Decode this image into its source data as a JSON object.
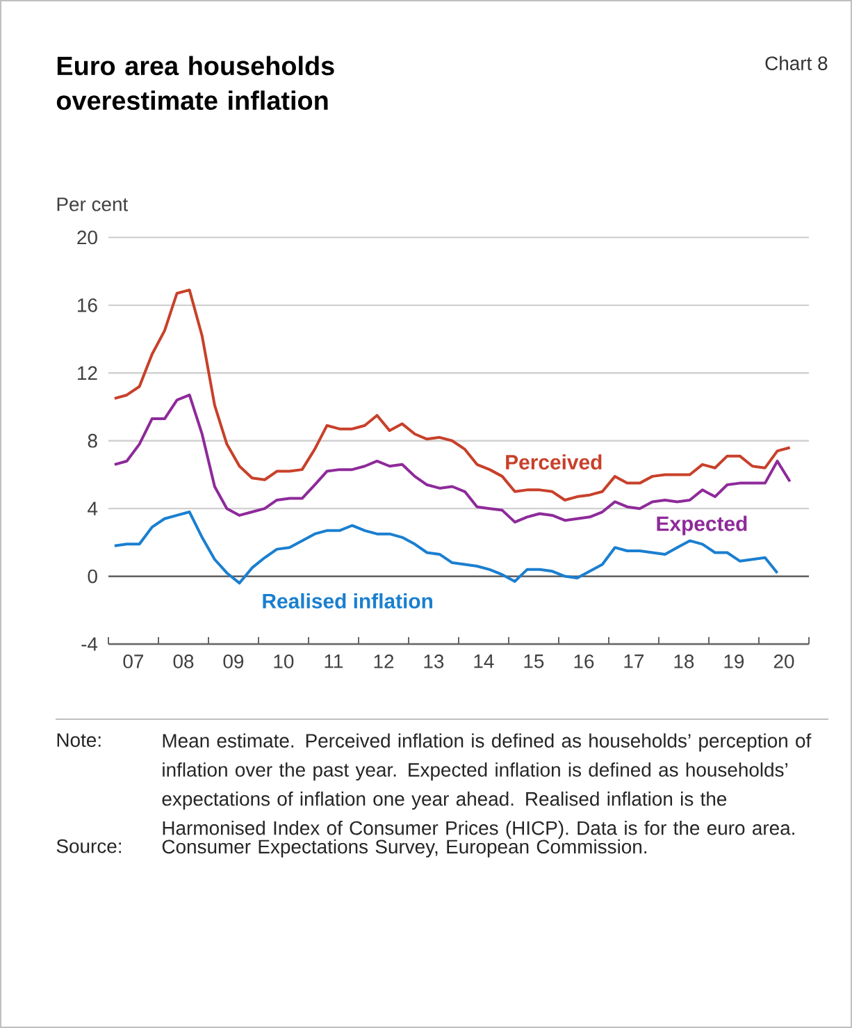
{
  "chart_data": {
    "type": "line",
    "title": "Euro area households overestimate inflation",
    "subtitle": "Chart 8",
    "ylabel": "Per cent",
    "x": [
      "2007-02-15",
      "2007-05-15",
      "2007-08-15",
      "2007-11-15",
      "2008-02-15",
      "2008-05-15",
      "2008-08-15",
      "2008-11-15",
      "2009-02-15",
      "2009-05-15",
      "2009-08-15",
      "2009-11-15",
      "2010-02-15",
      "2010-05-15",
      "2010-08-15",
      "2010-11-15",
      "2011-02-15",
      "2011-05-15",
      "2011-08-15",
      "2011-11-15",
      "2012-02-15",
      "2012-05-15",
      "2012-08-15",
      "2012-11-15",
      "2013-02-15",
      "2013-05-15",
      "2013-08-15",
      "2013-11-15",
      "2014-02-15",
      "2014-05-15",
      "2014-08-15",
      "2014-11-15",
      "2015-02-15",
      "2015-05-15",
      "2015-08-15",
      "2015-11-15",
      "2016-02-15",
      "2016-05-15",
      "2016-08-15",
      "2016-11-15",
      "2017-02-15",
      "2017-05-15",
      "2017-08-15",
      "2017-11-15",
      "2018-02-15",
      "2018-05-15",
      "2018-08-15",
      "2018-11-15",
      "2019-02-15",
      "2019-05-15",
      "2019-08-15",
      "2019-11-15",
      "2020-02-15",
      "2020-05-15",
      "2020-08-15"
    ],
    "series": [
      {
        "name": "Perceived",
        "color": "#c8402a",
        "values": [
          10.5,
          10.7,
          11.2,
          13.1,
          14.5,
          16.7,
          16.9,
          14.2,
          10.1,
          7.8,
          6.5,
          5.8,
          5.7,
          6.2,
          6.2,
          6.3,
          7.5,
          8.9,
          8.7,
          8.7,
          8.9,
          9.5,
          8.6,
          9.0,
          8.4,
          8.1,
          8.2,
          8.0,
          7.5,
          6.6,
          6.3,
          5.9,
          5.0,
          5.1,
          5.1,
          5.0,
          4.5,
          4.7,
          4.8,
          5.0,
          5.9,
          5.5,
          5.5,
          5.9,
          6.0,
          6.0,
          6.0,
          6.6,
          6.4,
          7.1,
          7.1,
          6.5,
          6.4,
          7.4,
          7.6
        ]
      },
      {
        "name": "Expected",
        "color": "#8e2a9a",
        "values": [
          6.6,
          6.8,
          7.8,
          9.3,
          9.3,
          10.4,
          10.7,
          8.4,
          5.3,
          4.0,
          3.6,
          3.8,
          4.0,
          4.5,
          4.6,
          4.6,
          5.4,
          6.2,
          6.3,
          6.3,
          6.5,
          6.8,
          6.5,
          6.6,
          5.9,
          5.4,
          5.2,
          5.3,
          5.0,
          4.1,
          4.0,
          3.9,
          3.2,
          3.5,
          3.7,
          3.6,
          3.3,
          3.4,
          3.5,
          3.8,
          4.4,
          4.1,
          4.0,
          4.4,
          4.5,
          4.4,
          4.5,
          5.1,
          4.7,
          5.4,
          5.5,
          5.5,
          5.5,
          6.8,
          5.6
        ]
      },
      {
        "name": "Realised inflation",
        "color": "#1a7fd0",
        "values": [
          1.8,
          1.9,
          1.9,
          2.9,
          3.4,
          3.6,
          3.8,
          2.3,
          1.0,
          0.2,
          -0.4,
          0.5,
          1.1,
          1.6,
          1.7,
          2.1,
          2.5,
          2.7,
          2.7,
          3.0,
          2.7,
          2.5,
          2.5,
          2.3,
          1.9,
          1.4,
          1.3,
          0.8,
          0.7,
          0.6,
          0.4,
          0.1,
          -0.3,
          0.4,
          0.4,
          0.3,
          0.0,
          -0.1,
          0.3,
          0.7,
          1.7,
          1.5,
          1.5,
          1.4,
          1.3,
          1.7,
          2.1,
          1.9,
          1.4,
          1.4,
          0.9,
          1.0,
          1.1,
          0.2,
          null
        ]
      }
    ],
    "xlim": [
      "2007-01-01",
      "2021-01-01"
    ],
    "xticks": [
      {
        "value": "2007-01-01",
        "label": null
      },
      {
        "value": "2007-07-02",
        "label": "07"
      },
      {
        "value": "2008-01-01",
        "label": null
      },
      {
        "value": "2008-07-02",
        "label": "08"
      },
      {
        "value": "2009-01-01",
        "label": null
      },
      {
        "value": "2009-07-02",
        "label": "09"
      },
      {
        "value": "2010-01-01",
        "label": null
      },
      {
        "value": "2010-07-02",
        "label": "10"
      },
      {
        "value": "2011-01-01",
        "label": null
      },
      {
        "value": "2011-07-02",
        "label": "11"
      },
      {
        "value": "2012-01-01",
        "label": null
      },
      {
        "value": "2012-07-02",
        "label": "12"
      },
      {
        "value": "2013-01-01",
        "label": null
      },
      {
        "value": "2013-07-02",
        "label": "13"
      },
      {
        "value": "2014-01-01",
        "label": null
      },
      {
        "value": "2014-07-02",
        "label": "14"
      },
      {
        "value": "2015-01-01",
        "label": null
      },
      {
        "value": "2015-07-02",
        "label": "15"
      },
      {
        "value": "2016-01-01",
        "label": null
      },
      {
        "value": "2016-07-02",
        "label": "16"
      },
      {
        "value": "2017-01-01",
        "label": null
      },
      {
        "value": "2017-07-02",
        "label": "17"
      },
      {
        "value": "2018-01-01",
        "label": null
      },
      {
        "value": "2018-07-02",
        "label": "18"
      },
      {
        "value": "2019-01-01",
        "label": null
      },
      {
        "value": "2019-07-02",
        "label": "19"
      },
      {
        "value": "2020-01-01",
        "label": null
      },
      {
        "value": "2020-07-02",
        "label": "20"
      },
      {
        "value": "2021-01-01",
        "label": null
      }
    ],
    "ylim": [
      -4,
      20
    ],
    "yticks": [
      -4,
      0,
      4,
      8,
      12,
      16,
      20
    ],
    "grid": "y",
    "ref_lines": [
      {
        "axis": "y",
        "value": 0,
        "color": "#555555"
      }
    ],
    "annotations": [
      "Note:",
      "Mean estimate. Perceived inflation is defined as households’ perception of inflation over the past year. Expected inflation is defined as households’ expectations of inflation one year ahead. Realised inflation is the Harmonised Index of Consumer Prices (HICP). Data is for the euro area.",
      "Source:",
      "Consumer Expectations Survey, European Commission."
    ]
  }
}
